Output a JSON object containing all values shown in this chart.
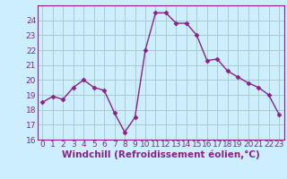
{
  "x": [
    0,
    1,
    2,
    3,
    4,
    5,
    6,
    7,
    8,
    9,
    10,
    11,
    12,
    13,
    14,
    15,
    16,
    17,
    18,
    19,
    20,
    21,
    22,
    23
  ],
  "y": [
    18.5,
    18.9,
    18.7,
    19.5,
    20.0,
    19.5,
    19.3,
    17.8,
    16.5,
    17.5,
    22.0,
    24.5,
    24.5,
    23.8,
    23.8,
    23.0,
    21.3,
    21.4,
    20.6,
    20.2,
    19.8,
    19.5,
    19.0,
    17.7
  ],
  "line_color": "#882288",
  "marker": "D",
  "marker_size": 2.5,
  "bg_color": "#cceeff",
  "grid_color": "#aacccc",
  "xlabel": "Windchill (Refroidissement éolien,°C)",
  "xlim": [
    -0.5,
    23.5
  ],
  "ylim": [
    16,
    25
  ],
  "yticks": [
    16,
    17,
    18,
    19,
    20,
    21,
    22,
    23,
    24
  ],
  "xticks": [
    0,
    1,
    2,
    3,
    4,
    5,
    6,
    7,
    8,
    9,
    10,
    11,
    12,
    13,
    14,
    15,
    16,
    17,
    18,
    19,
    20,
    21,
    22,
    23
  ],
  "tick_color": "#882288",
  "label_color": "#882288",
  "line_width": 1.0,
  "font_size": 6.5,
  "xlabel_fontsize": 7.5
}
